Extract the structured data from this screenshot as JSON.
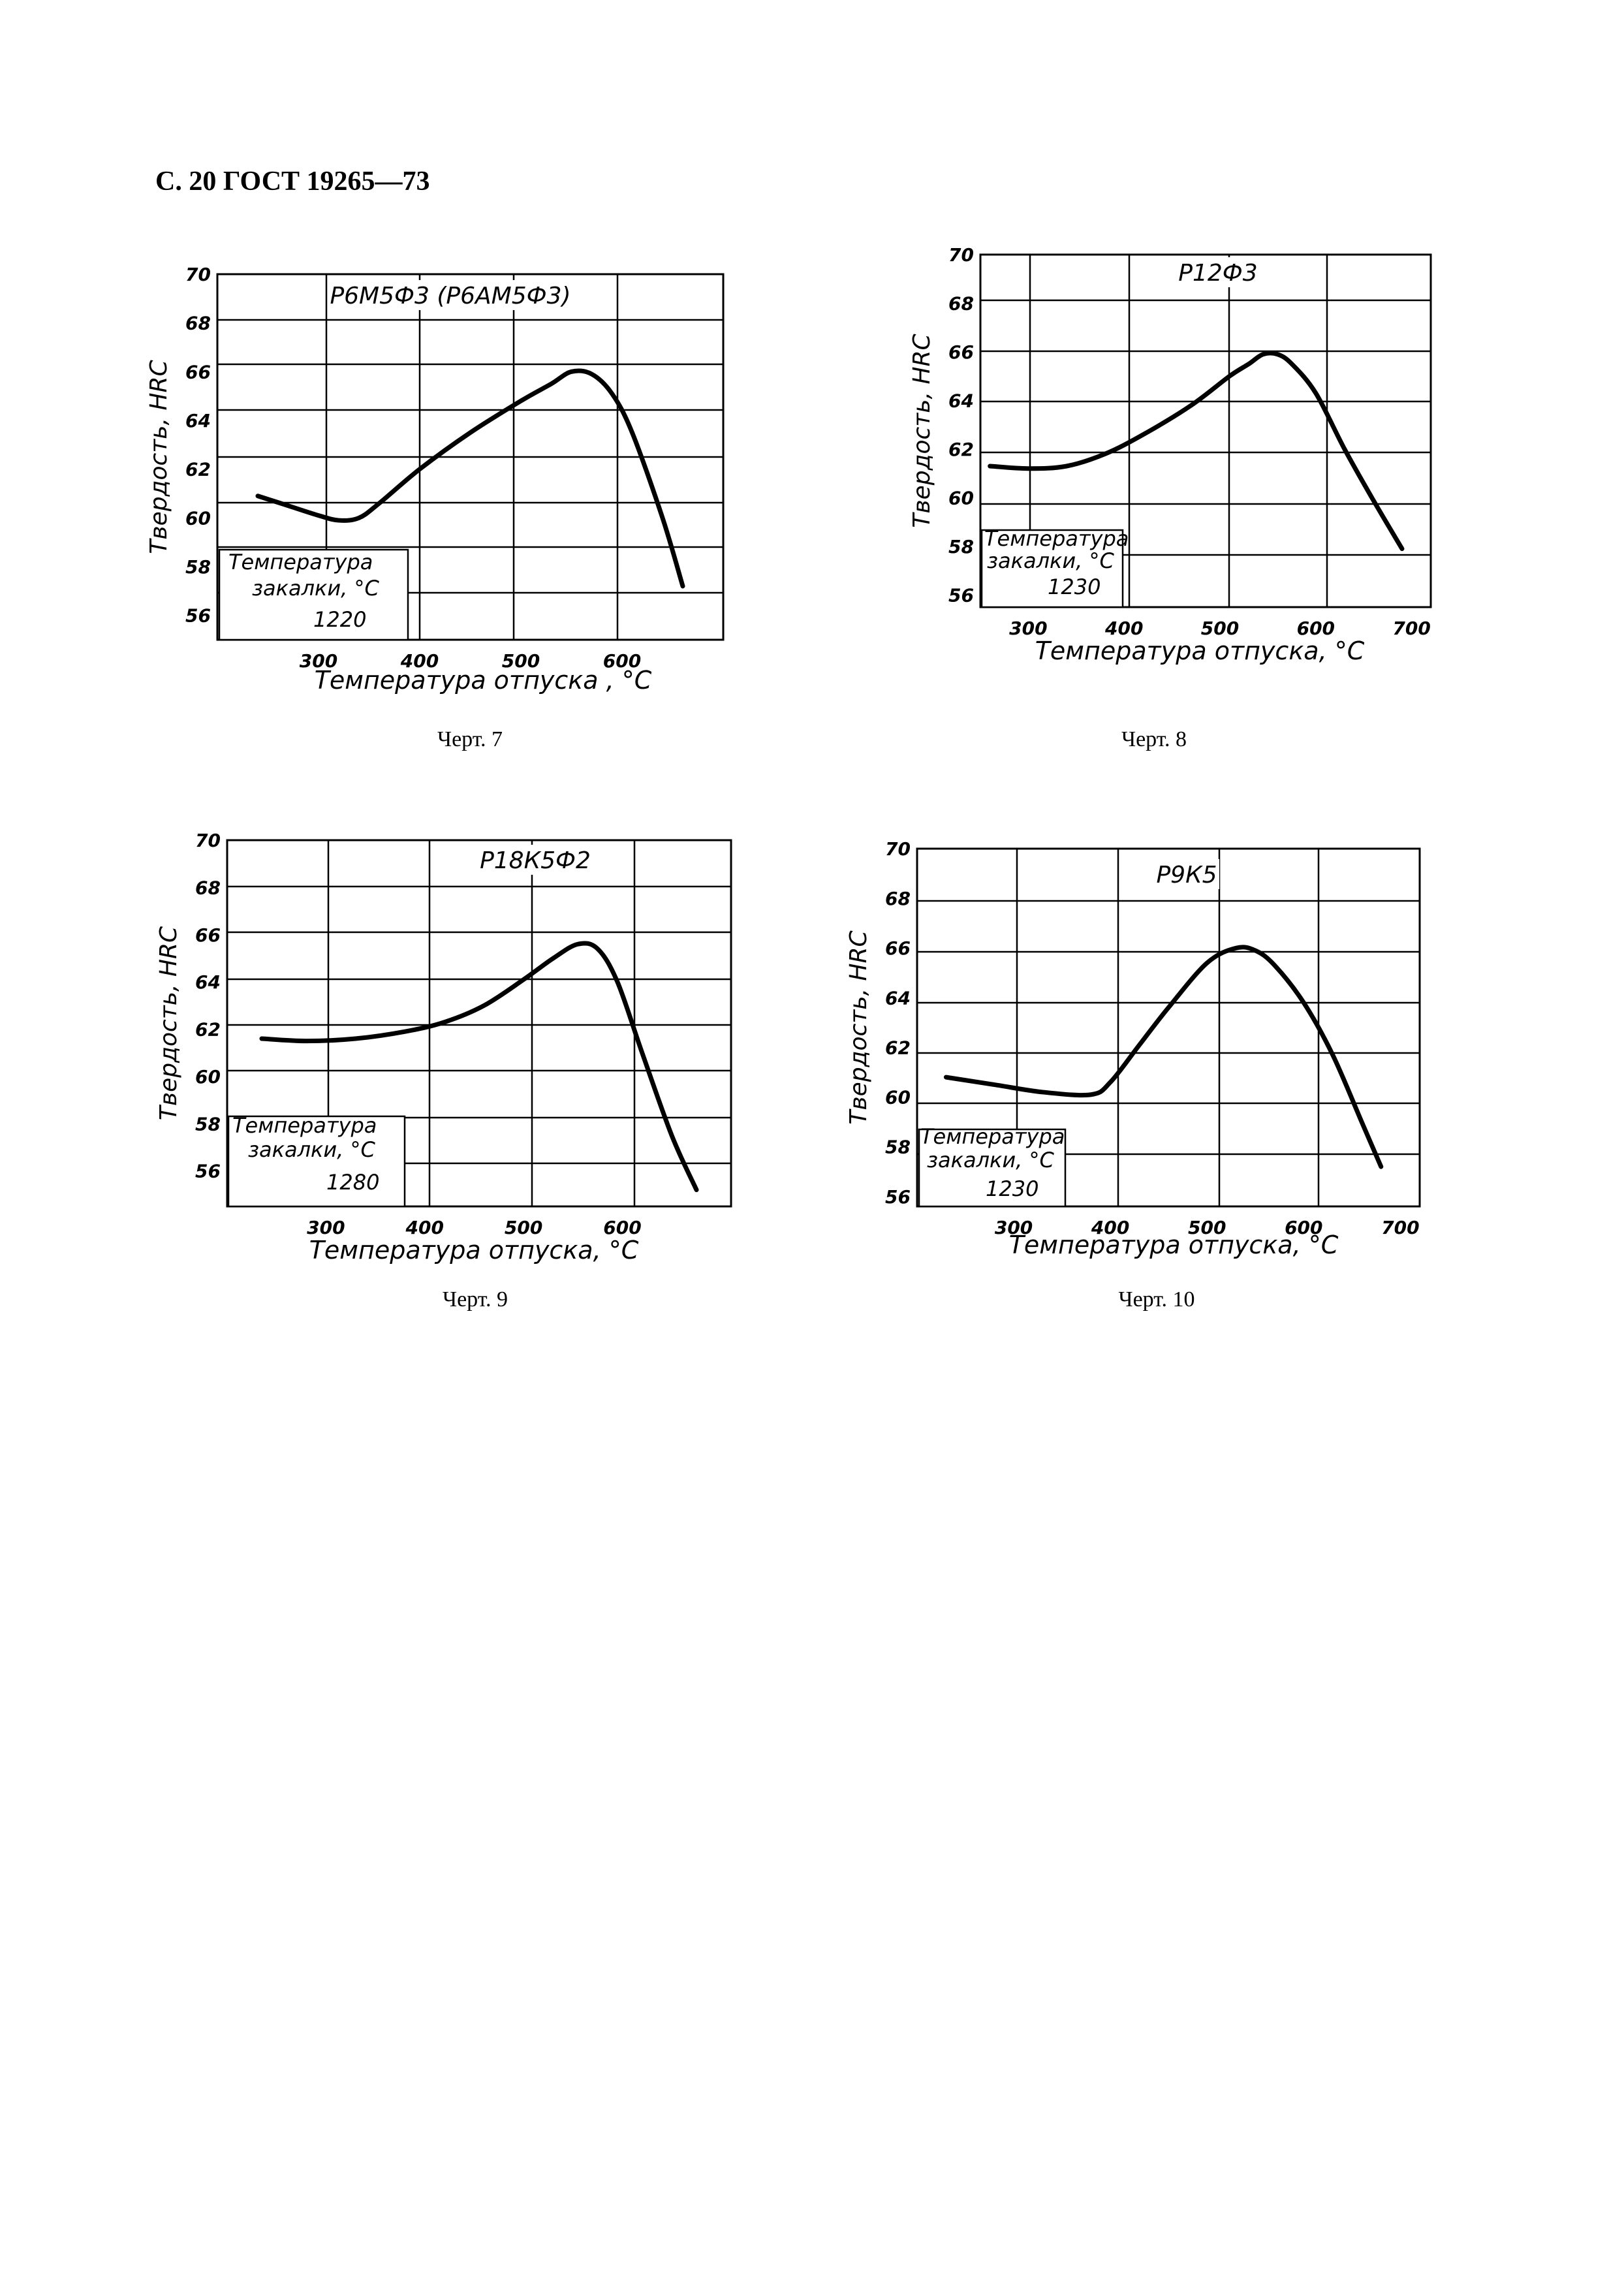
{
  "header": "С. 20 ГОСТ 19265—73",
  "chart_data": [
    {
      "type": "line",
      "title": "Р6М5Ф3 (Р6АМ5Ф3)",
      "ylabel": "Твердость, HRC",
      "xlabel": "Температура отпуска , °С",
      "caption": "Черт. 7",
      "inset_label": "Температура закалки, °С",
      "inset_value": "1220",
      "x_ticks": [
        300,
        400,
        500,
        600
      ],
      "y_ticks": [
        56,
        58,
        60,
        62,
        64,
        66,
        68,
        70
      ],
      "xlim": [
        200,
        700
      ],
      "ylim": [
        55,
        70
      ],
      "grid": true,
      "series": [
        {
          "x": [
            240,
            270,
            300,
            320,
            340,
            360,
            400,
            450,
            500,
            530,
            550,
            570,
            590,
            610,
            640,
            660
          ],
          "y": [
            60.9,
            60.5,
            60.1,
            59.9,
            60.0,
            60.6,
            62.0,
            63.5,
            64.8,
            65.5,
            66.0,
            65.9,
            65.1,
            63.5,
            60.0,
            57.2
          ]
        }
      ]
    },
    {
      "type": "line",
      "title": "Р12Ф3",
      "ylabel": "Твердость, HRC",
      "xlabel": "Температура отпуска, °С",
      "caption": "Черт. 8",
      "inset_label": "Температура закалки, °С",
      "inset_value": "1230",
      "x_ticks": [
        300,
        400,
        500,
        600,
        700
      ],
      "y_ticks": [
        56,
        58,
        60,
        62,
        64,
        66,
        68,
        70
      ],
      "xlim": [
        250,
        720
      ],
      "ylim": [
        55.5,
        70
      ],
      "grid": true,
      "series": [
        {
          "x": [
            260,
            300,
            340,
            380,
            420,
            470,
            510,
            530,
            545,
            560,
            575,
            600,
            630,
            660,
            690
          ],
          "y": [
            61.3,
            61.2,
            61.3,
            61.8,
            62.6,
            63.8,
            65.0,
            65.5,
            65.9,
            65.9,
            65.5,
            64.3,
            62.0,
            59.9,
            57.9
          ]
        }
      ]
    },
    {
      "type": "line",
      "title": "Р18К5Ф2",
      "ylabel": "Твердость, HRC",
      "xlabel": "Температура отпуска, °С",
      "caption": "Черт. 9",
      "inset_label": "Температура закалки, °С",
      "inset_value": "1280",
      "x_ticks": [
        300,
        400,
        500,
        600
      ],
      "y_ticks": [
        56,
        58,
        60,
        62,
        64,
        66,
        68,
        70
      ],
      "xlim": [
        200,
        710
      ],
      "ylim": [
        54.5,
        70
      ],
      "grid": true,
      "series": [
        {
          "x": [
            235,
            280,
            330,
            380,
            420,
            460,
            500,
            530,
            555,
            575,
            595,
            620,
            650,
            675
          ],
          "y": [
            61.6,
            61.5,
            61.6,
            61.9,
            62.3,
            63.0,
            64.1,
            65.0,
            65.6,
            65.4,
            64.0,
            61.0,
            57.5,
            55.2
          ]
        }
      ]
    },
    {
      "type": "line",
      "title": "Р9К5",
      "ylabel": "Твердость, HRC",
      "xlabel": "Температура отпуска, °С",
      "caption": "Черт. 10",
      "inset_label": "Температура закалки, °С",
      "inset_value": "1230",
      "x_ticks": [
        300,
        400,
        500,
        600,
        700
      ],
      "y_ticks": [
        56,
        58,
        60,
        62,
        64,
        66,
        68,
        70
      ],
      "xlim": [
        200,
        720
      ],
      "ylim": [
        55.6,
        70
      ],
      "grid": true,
      "series": [
        {
          "x": [
            230,
            280,
            330,
            380,
            400,
            430,
            460,
            500,
            530,
            550,
            570,
            600,
            630,
            660,
            680
          ],
          "y": [
            60.8,
            60.5,
            60.2,
            60.1,
            60.6,
            62.1,
            63.6,
            65.4,
            66.0,
            65.9,
            65.3,
            63.8,
            61.7,
            59.0,
            57.2
          ]
        }
      ]
    }
  ]
}
